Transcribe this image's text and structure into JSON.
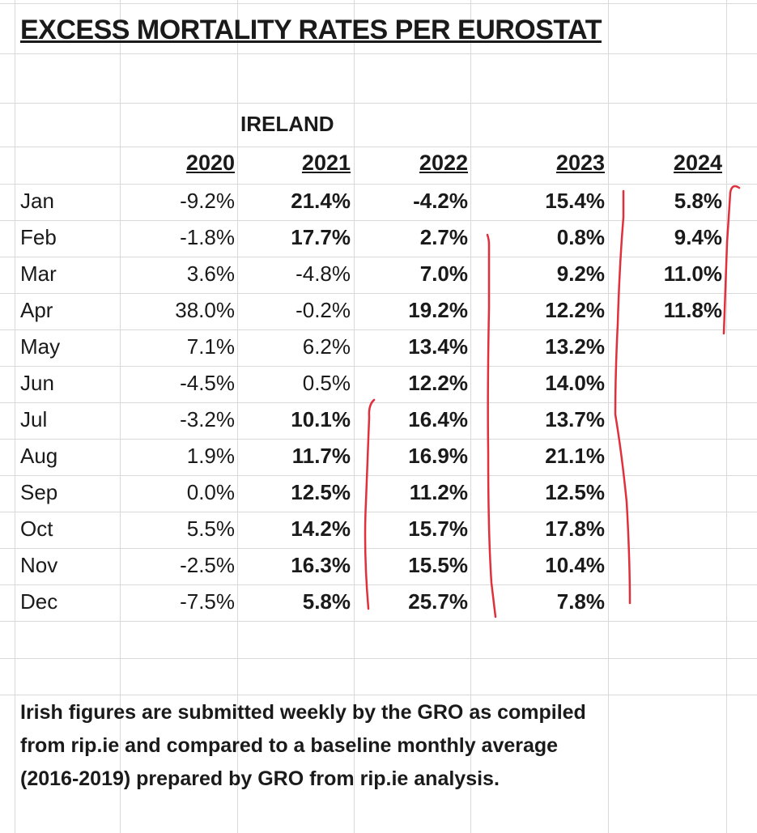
{
  "title": "EXCESS MORTALITY RATES PER EUROSTAT",
  "country": "IRELAND",
  "years": [
    "2020",
    "2021",
    "2022",
    "2023",
    "2024"
  ],
  "rows": [
    {
      "month": "Jan",
      "values": [
        "-9.2%",
        "21.4%",
        "-4.2%",
        "15.4%",
        "5.8%"
      ],
      "bold": [
        false,
        true,
        true,
        true,
        true
      ]
    },
    {
      "month": "Feb",
      "values": [
        "-1.8%",
        "17.7%",
        "2.7%",
        "0.8%",
        "9.4%"
      ],
      "bold": [
        false,
        true,
        true,
        true,
        true
      ]
    },
    {
      "month": "Mar",
      "values": [
        "3.6%",
        "-4.8%",
        "7.0%",
        "9.2%",
        "11.0%"
      ],
      "bold": [
        false,
        false,
        true,
        true,
        true
      ]
    },
    {
      "month": "Apr",
      "values": [
        "38.0%",
        "-0.2%",
        "19.2%",
        "12.2%",
        "11.8%"
      ],
      "bold": [
        false,
        false,
        true,
        true,
        true
      ]
    },
    {
      "month": "May",
      "values": [
        "7.1%",
        "6.2%",
        "13.4%",
        "13.2%",
        ""
      ],
      "bold": [
        false,
        false,
        true,
        true,
        false
      ]
    },
    {
      "month": "Jun",
      "values": [
        "-4.5%",
        "0.5%",
        "12.2%",
        "14.0%",
        ""
      ],
      "bold": [
        false,
        false,
        true,
        true,
        false
      ]
    },
    {
      "month": "Jul",
      "values": [
        "-3.2%",
        "10.1%",
        "16.4%",
        "13.7%",
        ""
      ],
      "bold": [
        false,
        true,
        true,
        true,
        false
      ]
    },
    {
      "month": "Aug",
      "values": [
        "1.9%",
        "11.7%",
        "16.9%",
        "21.1%",
        ""
      ],
      "bold": [
        false,
        true,
        true,
        true,
        false
      ]
    },
    {
      "month": "Sep",
      "values": [
        "0.0%",
        "12.5%",
        "11.2%",
        "12.5%",
        ""
      ],
      "bold": [
        false,
        true,
        true,
        true,
        false
      ]
    },
    {
      "month": "Oct",
      "values": [
        "5.5%",
        "14.2%",
        "15.7%",
        "17.8%",
        ""
      ],
      "bold": [
        false,
        true,
        true,
        true,
        false
      ]
    },
    {
      "month": "Nov",
      "values": [
        "-2.5%",
        "16.3%",
        "15.5%",
        "10.4%",
        ""
      ],
      "bold": [
        false,
        true,
        true,
        true,
        false
      ]
    },
    {
      "month": "Dec",
      "values": [
        "-7.5%",
        "5.8%",
        "25.7%",
        "7.8%",
        ""
      ],
      "bold": [
        false,
        true,
        true,
        true,
        false
      ]
    }
  ],
  "note": [
    "Irish figures are submitted weekly by the GRO as compiled",
    "from rip.ie and compared to a baseline monthly average",
    "(2016-2019) prepared by GRO from rip.ie analysis."
  ],
  "colors": {
    "gridline": "#d9d9d9",
    "text": "#1a1a1a",
    "annotation": "#e0303c"
  }
}
